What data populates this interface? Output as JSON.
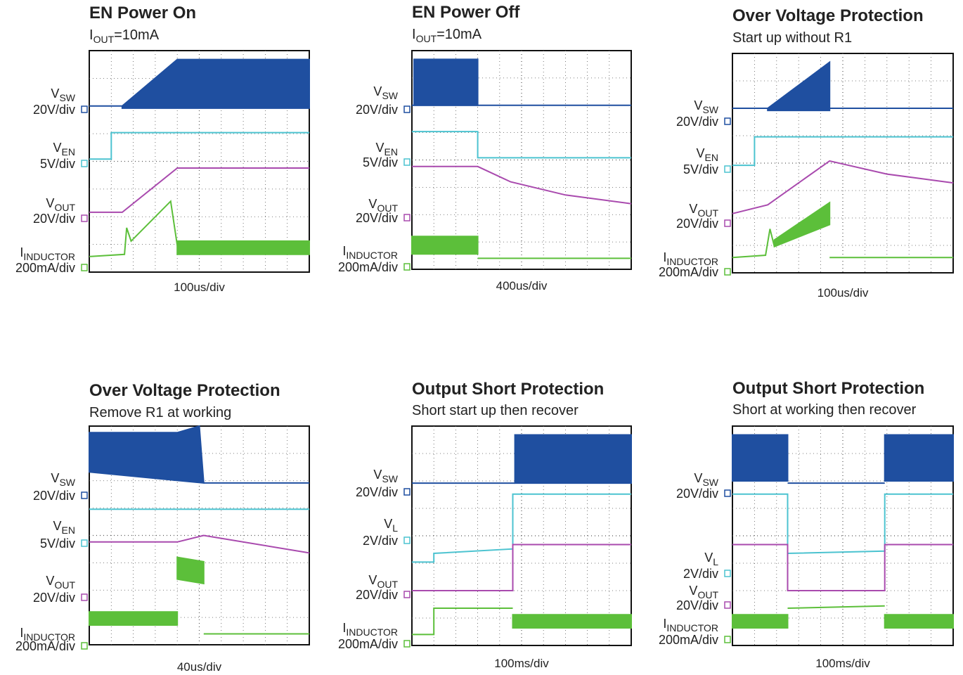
{
  "panels": [
    {
      "title": "EN Power On",
      "subtitle": {
        "main": "I",
        "sub": "OUT",
        "rest": "=10mA"
      },
      "channels": [
        {
          "main": "V",
          "sub": "SW",
          "scale": "20V/div"
        },
        {
          "main": "V",
          "sub": "EN",
          "scale": "5V/div"
        },
        {
          "main": "V",
          "sub": "OUT",
          "scale": "20V/div"
        },
        {
          "main": "I",
          "sub": "INDUCTOR",
          "scale": "200mA/div"
        }
      ],
      "timebase": "100us/div"
    },
    {
      "title": "EN Power Off",
      "subtitle": {
        "main": "I",
        "sub": "OUT",
        "rest": "=10mA"
      },
      "channels": [
        {
          "main": "V",
          "sub": "SW",
          "scale": "20V/div"
        },
        {
          "main": "V",
          "sub": "EN",
          "scale": "5V/div"
        },
        {
          "main": "V",
          "sub": "OUT",
          "scale": "20V/div"
        },
        {
          "main": "I",
          "sub": "INDUCTOR",
          "scale": "200mA/div"
        }
      ],
      "timebase": "400us/div"
    },
    {
      "title": "Over Voltage Protection",
      "subtitle": "Start up without R1",
      "channels": [
        {
          "main": "V",
          "sub": "SW",
          "scale": "20V/div"
        },
        {
          "main": "V",
          "sub": "EN",
          "scale": "5V/div"
        },
        {
          "main": "V",
          "sub": "OUT",
          "scale": "20V/div"
        },
        {
          "main": "I",
          "sub": "INDUCTOR",
          "scale": "200mA/div"
        }
      ],
      "timebase": "100us/div"
    },
    {
      "title": "Over Voltage Protection",
      "subtitle": "Remove R1 at working",
      "channels": [
        {
          "main": "V",
          "sub": "SW",
          "scale": "20V/div"
        },
        {
          "main": "V",
          "sub": "EN",
          "scale": "5V/div"
        },
        {
          "main": "V",
          "sub": "OUT",
          "scale": "20V/div"
        },
        {
          "main": "I",
          "sub": "INDUCTOR",
          "scale": "200mA/div"
        }
      ],
      "timebase": "40us/div"
    },
    {
      "title": "Output Short Protection",
      "subtitle": "Short start up then recover",
      "channels": [
        {
          "main": "V",
          "sub": "SW",
          "scale": "20V/div"
        },
        {
          "main": "V",
          "sub": "L",
          "scale": "2V/div"
        },
        {
          "main": "V",
          "sub": "OUT",
          "scale": "20V/div"
        },
        {
          "main": "I",
          "sub": "INDUCTOR",
          "scale": "200mA/div"
        }
      ],
      "timebase": "100ms/div"
    },
    {
      "title": "Output Short Protection",
      "subtitle": "Short at working then recover",
      "channels": [
        {
          "main": "V",
          "sub": "SW",
          "scale": "20V/div"
        },
        {
          "main": "V",
          "sub": "L",
          "scale": "2V/div"
        },
        {
          "main": "V",
          "sub": "OUT",
          "scale": "20V/div"
        },
        {
          "main": "I",
          "sub": "INDUCTOR",
          "scale": "200mA/div"
        }
      ],
      "timebase": "100ms/div"
    }
  ]
}
